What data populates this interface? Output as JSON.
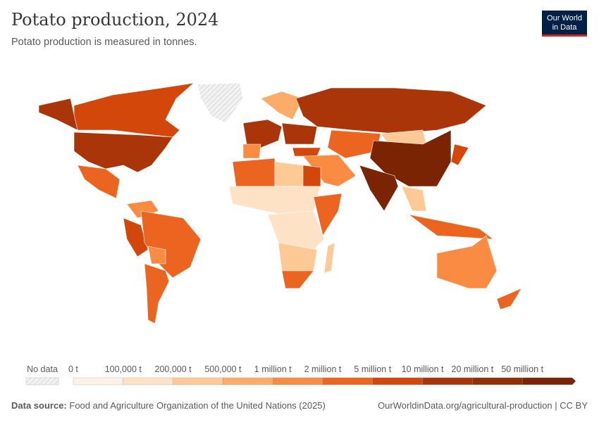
{
  "header": {
    "title": "Potato production, 2024",
    "subtitle": "Potato production is measured in tonnes.",
    "logo_text": "Our World in Data"
  },
  "chart_data": {
    "type": "choropleth map",
    "title": "Potato production, 2024",
    "unit": "tonnes",
    "legend": {
      "no_data_label": "No data",
      "bins": [
        "0 t",
        "100,000 t",
        "200,000 t",
        "500,000 t",
        "1 million t",
        "2 million t",
        "5 million t",
        "10 million t",
        "20 million t",
        "50 million t"
      ],
      "colors": [
        "#fef2e6",
        "#fde2c6",
        "#fdc995",
        "#fcab69",
        "#f98b42",
        "#ec6520",
        "#d4470a",
        "#a93509",
        "#922f07",
        "#7b2404"
      ],
      "no_data_color": "#e6e6e6"
    },
    "regions": {
      "canada": 6,
      "alaska": 7,
      "usa": 7,
      "mexico": 5,
      "colombia-venezuela": 4,
      "peru": 6,
      "brazil": 5,
      "bolivia": 4,
      "argentina": 5,
      "western-europe": 7,
      "spain": 4,
      "scandinavia": 3,
      "eastern-europe": 7,
      "russia": 7,
      "central-asia": 5,
      "mongolia": 2,
      "china": 9,
      "india": 9,
      "middle-east": 4,
      "turkey": 6,
      "japan": 6,
      "southeast-asia": 2,
      "indonesia": 5,
      "north-africa": 5,
      "libya": 2,
      "egypt": 6,
      "sahel": 1,
      "central-africa": 1,
      "east-africa": 5,
      "southern-africa": 2,
      "south-africa": 5,
      "madagascar": 2,
      "australia": 4,
      "new-zealand": 5
    }
  },
  "footer": {
    "source_label": "Data source:",
    "source": "Food and Agriculture Organization of the United Nations (2025)",
    "url": "OurWorldinData.org/agricultural-production | CC BY"
  }
}
